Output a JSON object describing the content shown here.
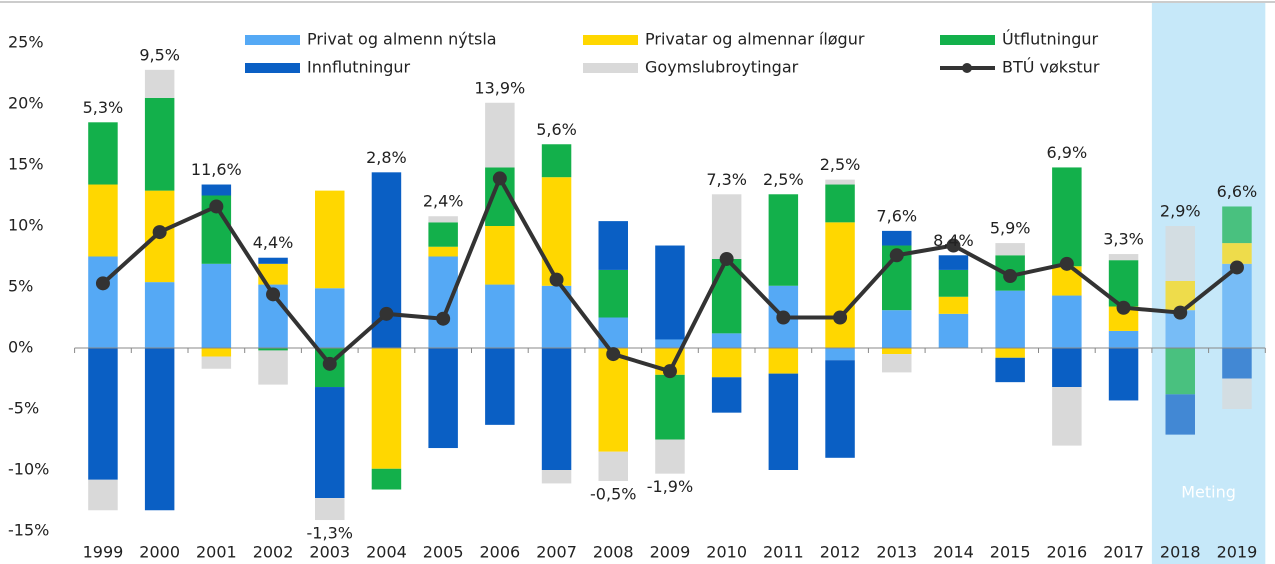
{
  "chart_data": {
    "type": "stacked_bar",
    "categories": [
      "1999",
      "2000",
      "2001",
      "2002",
      "2003",
      "2004",
      "2005",
      "2006",
      "2007",
      "2008",
      "2009",
      "2010",
      "2011",
      "2012",
      "2013",
      "2014",
      "2015",
      "2016",
      "2017",
      "2018",
      "2019"
    ],
    "series": [
      {
        "name": "Privat og almenn nýtsla",
        "color": "#55a9f5",
        "values": [
          7.5,
          5.4,
          6.9,
          5.2,
          4.9,
          0,
          7.5,
          5.2,
          5.1,
          2.5,
          0.7,
          1.2,
          5.1,
          -1.0,
          3.1,
          2.8,
          4.7,
          4.3,
          1.4,
          3.1,
          6.9
        ]
      },
      {
        "name": "Privatar og almennar íløgur",
        "color": "#ffd700",
        "values": [
          5.9,
          7.5,
          -0.7,
          1.7,
          8.0,
          -9.9,
          0.8,
          4.8,
          8.9,
          -8.5,
          -2.2,
          -2.4,
          -2.1,
          10.3,
          -0.5,
          1.4,
          -0.8,
          2.4,
          2.0,
          2.4,
          1.7
        ]
      },
      {
        "name": "Útflutningur",
        "color": "#13b04b",
        "values": [
          5.1,
          7.6,
          5.6,
          -0.2,
          -3.2,
          -1.7,
          2.0,
          4.8,
          2.7,
          3.9,
          -5.3,
          6.1,
          7.5,
          3.1,
          5.3,
          2.2,
          2.9,
          8.1,
          3.8,
          -3.8,
          3.0
        ]
      },
      {
        "name": "Innflutningur",
        "color": "#0a5fc4",
        "values": [
          -10.8,
          -13.3,
          0.9,
          0.5,
          -9.1,
          14.4,
          -8.2,
          -6.3,
          -10.0,
          4.0,
          7.7,
          -2.9,
          -7.9,
          -8.0,
          1.2,
          1.2,
          -2.0,
          -3.2,
          -4.3,
          -3.3,
          -2.5
        ]
      },
      {
        "name": "Goymslubroytingar",
        "color": "#d9d9d9",
        "values": [
          -2.5,
          2.3,
          -1.0,
          -2.8,
          -1.8,
          0,
          0.5,
          5.3,
          -1.1,
          -2.4,
          -2.8,
          5.3,
          0,
          0.4,
          -1.5,
          0,
          1.0,
          -4.8,
          0.5,
          4.5,
          -2.5
        ]
      }
    ],
    "line": {
      "name": "BTÚ vøkstur",
      "color": "#333333",
      "values": [
        5.3,
        9.5,
        11.6,
        4.4,
        -1.3,
        2.8,
        2.4,
        13.9,
        5.6,
        -0.5,
        -1.9,
        7.3,
        2.5,
        2.5,
        7.6,
        8.4,
        5.9,
        6.9,
        3.3,
        2.9,
        6.6
      ],
      "value_labels": [
        "5,3%",
        "9,5%",
        "11,6%",
        "4,4%",
        "-1,3%",
        "2,8%",
        "2,4%",
        "13,9%",
        "5,6%",
        "-0,5%",
        "-1,9%",
        "7,3%",
        "2,5%",
        "2,5%",
        "7,6%",
        "8,4%",
        "5,9%",
        "6,9%",
        "3,3%",
        "2,9%",
        "6,6%"
      ]
    },
    "ylim": [
      -15,
      25
    ],
    "yticks": [
      {
        "value": -15,
        "label": "-15%"
      },
      {
        "value": -10,
        "label": "-10%"
      },
      {
        "value": -5,
        "label": "-5%"
      },
      {
        "value": 0,
        "label": "0%"
      },
      {
        "value": 5,
        "label": "5%"
      },
      {
        "value": 10,
        "label": "10%"
      },
      {
        "value": 15,
        "label": "15%"
      },
      {
        "value": 20,
        "label": "20%"
      },
      {
        "value": 25,
        "label": "25%"
      }
    ],
    "forecast": {
      "label": "Meting",
      "categories": [
        "2018",
        "2019"
      ]
    }
  }
}
